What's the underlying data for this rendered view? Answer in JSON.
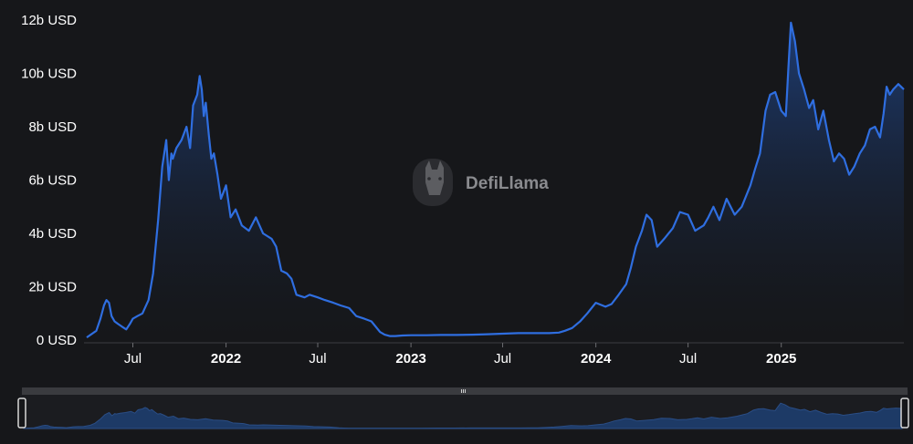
{
  "watermark": {
    "text": "DefiLlama",
    "icon": "llama-logo-icon"
  },
  "colors": {
    "background": "#16171a",
    "line": "#2f6ee0",
    "area_top": "#1e3f7a",
    "area_bottom": "#16171a",
    "brush_fill": "#1d3a66",
    "brush_track": "#3a3b3f"
  },
  "chart_data": {
    "type": "area",
    "title": "",
    "xlabel": "",
    "ylabel": "",
    "yunit": "USD",
    "ylim": [
      0,
      12000000000
    ],
    "xlim": [
      "2021-04-01",
      "2025-08-31"
    ],
    "grid": false,
    "legend": "none",
    "y_ticks": [
      {
        "value": 0,
        "label": "0 USD"
      },
      {
        "value": 2000000000,
        "label": "2b USD"
      },
      {
        "value": 4000000000,
        "label": "4b USD"
      },
      {
        "value": 6000000000,
        "label": "6b USD"
      },
      {
        "value": 8000000000,
        "label": "8b USD"
      },
      {
        "value": 10000000000,
        "label": "10b USD"
      },
      {
        "value": 12000000000,
        "label": "12b USD"
      }
    ],
    "x_ticks": [
      {
        "date": "2021-07-01",
        "label": "Jul",
        "bold": false
      },
      {
        "date": "2022-01-01",
        "label": "2022",
        "bold": true
      },
      {
        "date": "2022-07-01",
        "label": "Jul",
        "bold": false
      },
      {
        "date": "2023-01-01",
        "label": "2023",
        "bold": true
      },
      {
        "date": "2023-07-01",
        "label": "Jul",
        "bold": false
      },
      {
        "date": "2024-01-01",
        "label": "2024",
        "bold": true
      },
      {
        "date": "2024-07-01",
        "label": "Jul",
        "bold": false
      },
      {
        "date": "2025-01-01",
        "label": "2025",
        "bold": true
      }
    ],
    "series": [
      {
        "x": [
          "2021-04-01",
          "2021-04-20",
          "2021-04-28",
          "2021-05-05",
          "2021-05-10",
          "2021-05-15",
          "2021-05-20",
          "2021-05-26",
          "2021-06-02",
          "2021-06-10",
          "2021-06-18",
          "2021-06-25",
          "2021-07-01",
          "2021-07-10",
          "2021-07-20",
          "2021-08-01",
          "2021-08-10",
          "2021-08-20",
          "2021-08-28",
          "2021-09-05",
          "2021-09-10",
          "2021-09-15",
          "2021-09-18",
          "2021-09-25",
          "2021-10-05",
          "2021-10-15",
          "2021-10-22",
          "2021-10-28",
          "2021-11-05",
          "2021-11-10",
          "2021-11-14",
          "2021-11-18",
          "2021-11-22",
          "2021-11-28",
          "2021-12-03",
          "2021-12-08",
          "2021-12-15",
          "2021-12-22",
          "2022-01-01",
          "2022-01-10",
          "2022-01-20",
          "2022-02-01",
          "2022-02-15",
          "2022-03-01",
          "2022-03-15",
          "2022-04-01",
          "2022-04-10",
          "2022-04-20",
          "2022-05-01",
          "2022-05-10",
          "2022-05-20",
          "2022-06-05",
          "2022-06-15",
          "2022-07-01",
          "2022-07-15",
          "2022-08-01",
          "2022-08-15",
          "2022-09-01",
          "2022-09-15",
          "2022-10-01",
          "2022-10-15",
          "2022-11-01",
          "2022-11-10",
          "2022-11-20",
          "2022-12-01",
          "2022-12-15",
          "2023-01-01",
          "2023-02-01",
          "2023-03-01",
          "2023-04-01",
          "2023-05-01",
          "2023-06-01",
          "2023-07-01",
          "2023-08-01",
          "2023-09-01",
          "2023-10-01",
          "2023-10-20",
          "2023-11-01",
          "2023-11-15",
          "2023-12-01",
          "2023-12-15",
          "2024-01-01",
          "2024-01-20",
          "2024-02-01",
          "2024-02-15",
          "2024-03-01",
          "2024-03-10",
          "2024-03-20",
          "2024-04-01",
          "2024-04-10",
          "2024-04-20",
          "2024-05-01",
          "2024-05-15",
          "2024-06-01",
          "2024-06-15",
          "2024-07-01",
          "2024-07-15",
          "2024-08-01",
          "2024-08-10",
          "2024-08-20",
          "2024-09-01",
          "2024-09-15",
          "2024-10-01",
          "2024-10-15",
          "2024-11-01",
          "2024-11-10",
          "2024-11-20",
          "2024-12-01",
          "2024-12-10",
          "2024-12-20",
          "2025-01-01",
          "2025-01-10",
          "2025-01-15",
          "2025-01-20",
          "2025-01-28",
          "2025-02-05",
          "2025-02-15",
          "2025-02-25",
          "2025-03-05",
          "2025-03-15",
          "2025-03-25",
          "2025-04-05",
          "2025-04-15",
          "2025-04-25",
          "2025-05-05",
          "2025-05-15",
          "2025-05-25",
          "2025-06-05",
          "2025-06-15",
          "2025-06-25",
          "2025-07-05",
          "2025-07-15",
          "2025-07-22",
          "2025-07-28",
          "2025-08-03",
          "2025-08-10",
          "2025-08-20",
          "2025-08-31"
        ],
        "y": [
          100000000,
          350000000,
          800000000,
          1300000000,
          1500000000,
          1400000000,
          900000000,
          700000000,
          600000000,
          500000000,
          400000000,
          600000000,
          800000000,
          900000000,
          1000000000,
          1500000000,
          2500000000,
          4500000000,
          6500000000,
          7500000000,
          6000000000,
          7000000000,
          6800000000,
          7200000000,
          7500000000,
          8000000000,
          7200000000,
          8800000000,
          9200000000,
          9900000000,
          9400000000,
          8400000000,
          8900000000,
          7700000000,
          6800000000,
          7000000000,
          6200000000,
          5300000000,
          5800000000,
          4600000000,
          4900000000,
          4300000000,
          4100000000,
          4600000000,
          4000000000,
          3800000000,
          3500000000,
          2600000000,
          2500000000,
          2300000000,
          1700000000,
          1600000000,
          1700000000,
          1600000000,
          1500000000,
          1400000000,
          1300000000,
          1200000000,
          900000000,
          800000000,
          700000000,
          300000000,
          200000000,
          150000000,
          150000000,
          170000000,
          180000000,
          180000000,
          190000000,
          190000000,
          200000000,
          220000000,
          240000000,
          260000000,
          260000000,
          260000000,
          280000000,
          350000000,
          450000000,
          700000000,
          1000000000,
          1400000000,
          1250000000,
          1350000000,
          1700000000,
          2100000000,
          2700000000,
          3500000000,
          4100000000,
          4700000000,
          4500000000,
          3500000000,
          3800000000,
          4200000000,
          4800000000,
          4700000000,
          4100000000,
          4300000000,
          4600000000,
          5000000000,
          4500000000,
          5300000000,
          4700000000,
          5000000000,
          5800000000,
          6400000000,
          7000000000,
          8600000000,
          9200000000,
          9300000000,
          8600000000,
          8400000000,
          10200000000,
          11900000000,
          11200000000,
          10000000000,
          9400000000,
          8700000000,
          9000000000,
          7900000000,
          8600000000,
          7500000000,
          6700000000,
          7000000000,
          6800000000,
          6200000000,
          6500000000,
          7000000000,
          7300000000,
          7900000000,
          8000000000,
          7600000000,
          8500000000,
          9500000000,
          9200000000,
          9400000000,
          9600000000,
          9400000000
        ]
      }
    ]
  }
}
